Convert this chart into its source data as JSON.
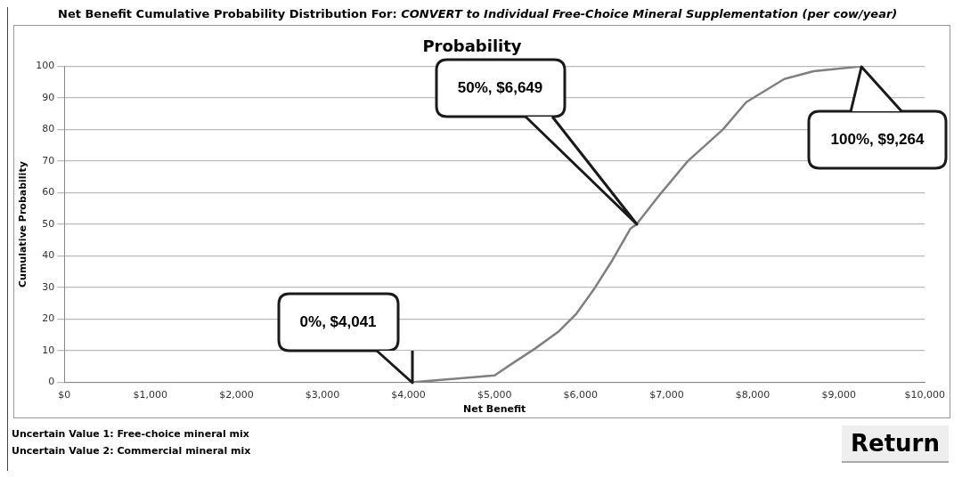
{
  "chart_data": {
    "type": "line",
    "title": "Net Benefit Cumulative Probability Distribution For: CONVERT to Individual Free-Choice Mineral Supplementation (per cow/year)",
    "subtitle": "Probability",
    "xlabel": "Net Benefit",
    "ylabel": "Cumulative Probability",
    "series": [
      {
        "color": "#808080",
        "x": [
          4041,
          5000,
          5190,
          5470,
          5740,
          5950,
          6160,
          6370,
          6580,
          6649,
          6938,
          7244,
          7652,
          7925,
          8367,
          8707,
          9264
        ],
        "values": [
          0,
          2.2,
          5.7,
          10.7,
          16,
          21.7,
          29.7,
          38.7,
          48.7,
          50,
          60,
          70,
          80,
          88.7,
          96,
          98.5,
          100
        ]
      }
    ],
    "xlim": [
      0,
      10000
    ],
    "xticks": [
      {
        "value": 0,
        "label": "$0"
      },
      {
        "value": 1000,
        "label": "$1,000"
      },
      {
        "value": 2000,
        "label": "$2,000"
      },
      {
        "value": 3000,
        "label": "$3,000"
      },
      {
        "value": 4000,
        "label": "$4,000"
      },
      {
        "value": 5000,
        "label": "$5,000"
      },
      {
        "value": 6000,
        "label": "$6,000"
      },
      {
        "value": 7000,
        "label": "$7,000"
      },
      {
        "value": 8000,
        "label": "$8,000"
      },
      {
        "value": 9000,
        "label": "$9,000"
      },
      {
        "value": 10000,
        "label": "$10,000"
      }
    ],
    "ylim": [
      0,
      100
    ],
    "yticks": [
      0,
      10,
      20,
      30,
      40,
      50,
      60,
      70,
      80,
      90,
      100
    ],
    "grid": "y",
    "legend": false,
    "marker": "none",
    "line_style": "solid",
    "annotations": [
      "0%, $4,041",
      "50%, $6,649",
      "100%, $9,264",
      "Uncertain Value 1: Free-choice mineral mix",
      "Uncertain Value 2: Commercial mineral mix",
      "Return"
    ]
  }
}
